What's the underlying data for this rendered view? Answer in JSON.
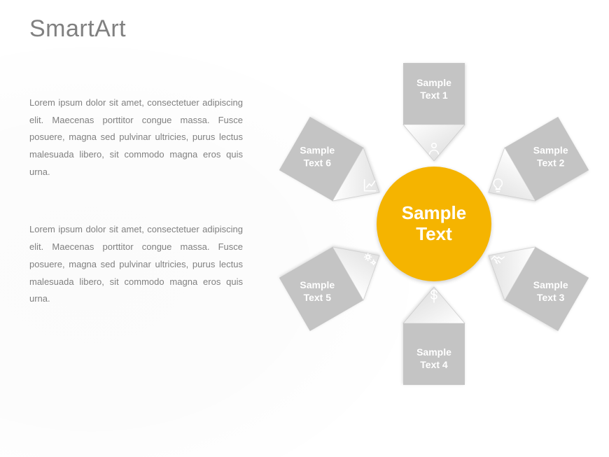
{
  "title": "SmartArt",
  "paragraphs": [
    "Lorem ipsum dolor sit amet, consectetuer adipiscing elit. Maecenas porttitor congue massa. Fusce posuere, magna sed pulvinar ultricies, purus lectus malesuada libero, sit commodo magna eros quis urna.",
    "Lorem ipsum dolor sit amet, consectetuer adipiscing elit. Maecenas porttitor congue massa. Fusce posuere, magna sed pulvinar ultricies, purus lectus malesuada libero, sit commodo magna eros quis urna."
  ],
  "diagram": {
    "type": "converging-radial",
    "center": {
      "label": "Sample\nText",
      "fill": "#f5b400",
      "text_color": "#ffffff",
      "fontsize": 26
    },
    "arrow_fill": "#c4c4c4",
    "arrow_head_gradient": [
      "#ffffff",
      "#d9d9d9"
    ],
    "arrow_text_color": "#ffffff",
    "arrows": [
      {
        "label": "Sample\nText 1",
        "angle": 0,
        "icon": "person"
      },
      {
        "label": "Sample\nText 2",
        "angle": 60,
        "icon": "lightbulb"
      },
      {
        "label": "Sample\nText 3",
        "angle": 120,
        "icon": "handshake"
      },
      {
        "label": "Sample\nText 4",
        "angle": 180,
        "icon": "dollar"
      },
      {
        "label": "Sample\nText 5",
        "angle": 240,
        "icon": "gears"
      },
      {
        "label": "Sample\nText 6",
        "angle": 300,
        "icon": "chart"
      }
    ],
    "background_color": "#ffffff",
    "text_color": "#808080",
    "body_fontsize": 13
  }
}
